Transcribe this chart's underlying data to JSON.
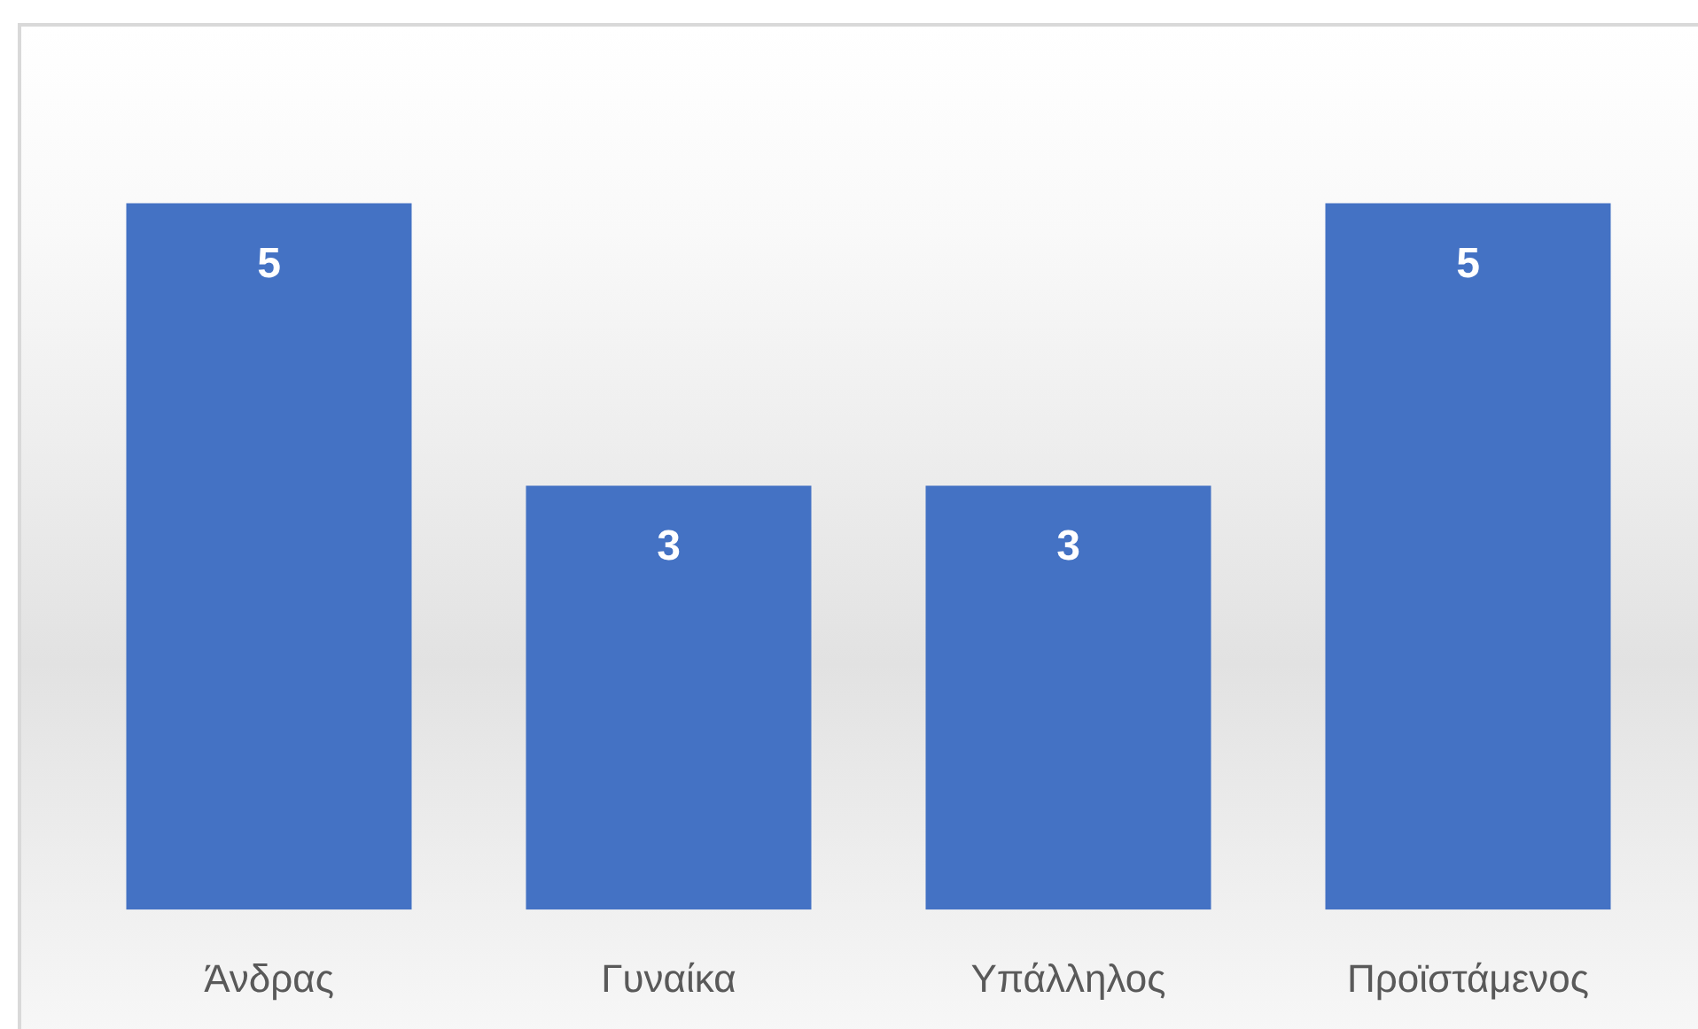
{
  "chart_data": {
    "type": "bar",
    "categories": [
      "Άνδρας",
      "Γυναίκα",
      "Υπάλληλος",
      "Προϊστάμενος"
    ],
    "values": [
      5,
      3,
      3,
      5
    ],
    "color": "#4472c4",
    "data_labels": true,
    "grid": false,
    "legend": false
  }
}
